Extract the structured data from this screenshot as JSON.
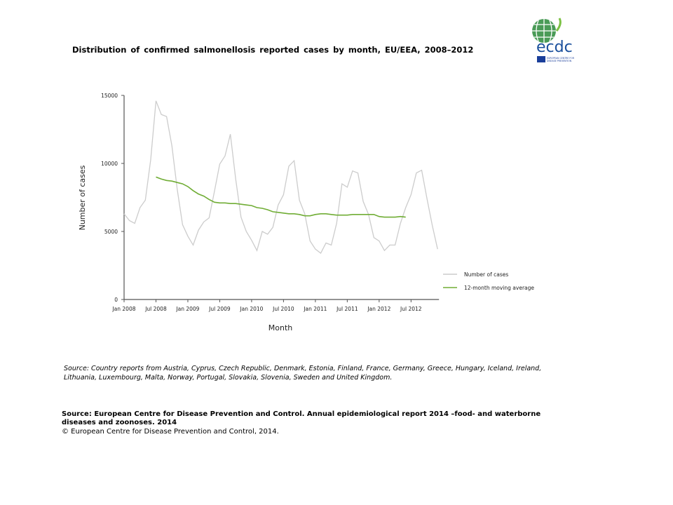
{
  "title": "Distribution of confirmed salmonellosis reported cases by month, EU/EEA, 2008–2012",
  "logo": {
    "text": "ecdc",
    "subtitle": "EUROPEAN CENTRE FOR DISEASE PREVENTION AND CONTROL"
  },
  "chart_data": {
    "type": "line",
    "title": "",
    "xlabel": "Month",
    "ylabel": "Number of cases",
    "ylim": [
      0,
      15000
    ],
    "yticks": [
      "0",
      "5000",
      "10000",
      "15000"
    ],
    "xticks": [
      "Jan 2008",
      "Jul 2008",
      "Jan 2009",
      "Jul 2009",
      "Jan 2010",
      "Jul 2010",
      "Jan 2011",
      "Jul 2011",
      "Jan 2012",
      "Jul 2012"
    ],
    "x_start": "2008-01",
    "grid": false,
    "legend": "right",
    "series": [
      {
        "name": "Number of cases",
        "color": "#cccccc",
        "start": "2008-01",
        "values": [
          6300,
          5800,
          5600,
          6750,
          7300,
          10250,
          14600,
          13600,
          13450,
          11300,
          8100,
          5500,
          4650,
          4000,
          5100,
          5700,
          6000,
          7950,
          9950,
          10550,
          12150,
          8850,
          6050,
          5000,
          4350,
          3600,
          5000,
          4800,
          5300,
          6950,
          7700,
          9800,
          10200,
          7300,
          6300,
          4300,
          3700,
          3400,
          4150,
          4000,
          5600,
          8500,
          8250,
          9450,
          9300,
          7200,
          6250,
          4550,
          4300,
          3600,
          4000,
          4000,
          5600,
          6750,
          7700,
          9300,
          9500,
          7400,
          5450,
          3700
        ]
      },
      {
        "name": "12-month moving average",
        "color": "#70ad35",
        "start": "2008-07",
        "values": [
          9000,
          8850,
          8750,
          8700,
          8600,
          8500,
          8300,
          8000,
          7750,
          7600,
          7350,
          7150,
          7100,
          7100,
          7050,
          7050,
          7000,
          6950,
          6900,
          6750,
          6700,
          6600,
          6450,
          6400,
          6350,
          6300,
          6300,
          6250,
          6150,
          6150,
          6250,
          6300,
          6300,
          6250,
          6200,
          6200,
          6200,
          6250,
          6250,
          6250,
          6250,
          6250,
          6100,
          6050,
          6050,
          6050,
          6100,
          6050
        ]
      }
    ]
  },
  "source_note": "Source: Country reports from Austria, Cyprus, Czech Republic, Denmark, Estonia, Finland, France, Germany, Greece, Hungary, Iceland, Ireland, Lithuania, Luxembourg, Malta, Norway, Portugal, Slovakia, Slovenia, Sweden and United Kingdom.",
  "source_main": "Source: European Centre for Disease Prevention and Control. Annual epidemiological report 2014 –food- and waterborne diseases and zoonoses. 2014",
  "copyright": "© European Centre for Disease Prevention and Control, 2014."
}
